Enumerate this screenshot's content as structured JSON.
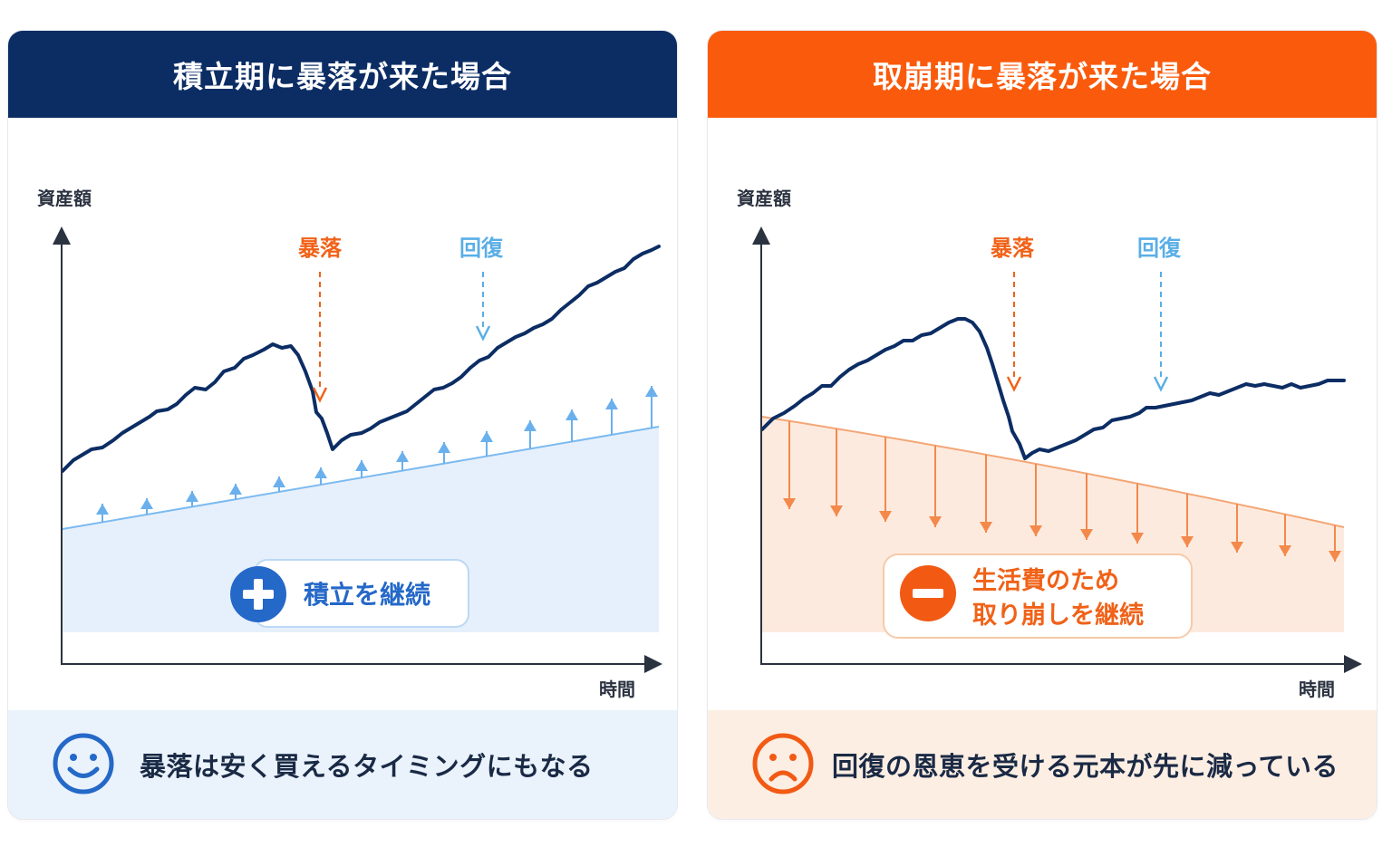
{
  "left": {
    "title": "積立期に暴落が来た場合",
    "y_axis_label": "資産額",
    "x_axis_label": "時間",
    "crash_label": "暴落",
    "recovery_label": "回復",
    "badge_text": "積立を継続",
    "footer_text": "暴落は安く買えるタイミングにもなる",
    "colors": {
      "header": "#0c2d64",
      "line": "#0c2d64",
      "accent": "#2e6fcf",
      "arrows": "#6ab0ec"
    }
  },
  "right": {
    "title": "取崩期に暴落が来た場合",
    "y_axis_label": "資産額",
    "x_axis_label": "時間",
    "crash_label": "暴落",
    "recovery_label": "回復",
    "badge_line1": "生活費のため",
    "badge_line2": "取り崩しを継続",
    "footer_text": "回復の恩恵を受ける元本が先に減っている",
    "colors": {
      "header": "#fa5a0c",
      "line": "#0c2d64",
      "accent": "#f06218",
      "arrows": "#f3894a"
    }
  },
  "icons": {
    "plus": "plus-icon",
    "minus": "minus-icon",
    "smile": "smiling-face-icon",
    "sad": "sad-face-icon"
  }
}
